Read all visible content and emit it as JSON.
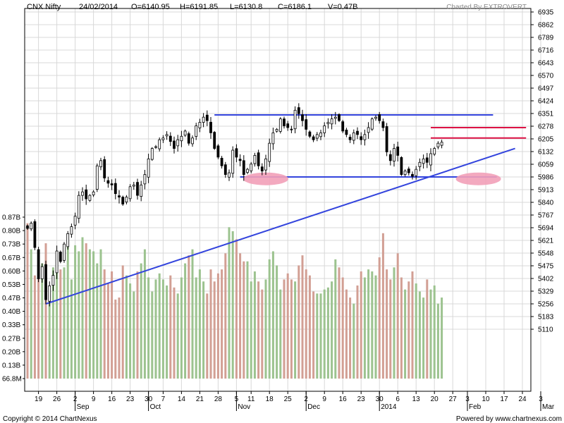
{
  "header": {
    "symbol": "CNX Nifty",
    "date": "24/02/2014",
    "open": "O=6140.95",
    "high": "H=6191.85",
    "low": "L=6130.8",
    "close": "C=6186.1",
    "volume": "V=0.47B",
    "branding": "Charted By EXTROVERT"
  },
  "footer": {
    "copyright": "Copyright © 2014 ChartNexus",
    "powered": "Powered by www.chartnexus.com"
  },
  "colors": {
    "up_volume": "#9cc38f",
    "down_volume": "#d29f94",
    "trendline": "#3344dd",
    "resistance": "#dd1144",
    "highlight": "#f2a0b8",
    "candle": "#000000",
    "grid": "#d8d8d8"
  },
  "chart_data": {
    "type": "candlestick",
    "grid": true,
    "price_axis": {
      "ylim": [
        5110,
        6935
      ],
      "ticks": [
        "6935",
        "6862",
        "6789",
        "6716",
        "6643",
        "6570",
        "6497",
        "6424",
        "6351",
        "6278",
        "6205",
        "6132",
        "6059",
        "5986",
        "5913",
        "5840",
        "5767",
        "5694",
        "5621",
        "5548",
        "5475",
        "5402",
        "5329",
        "5256",
        "5183",
        "5110"
      ]
    },
    "volume_axis": {
      "ylim": [
        0.0668,
        0.87
      ],
      "ticks": [
        "0.87B",
        "0.80B",
        "0.73B",
        "0.67B",
        "0.60B",
        "0.53B",
        "0.47B",
        "0.40B",
        "0.33B",
        "0.27B",
        "0.20B",
        "0.13B",
        "66.8M"
      ]
    },
    "x_axis": {
      "day_ticks": [
        {
          "label": "19",
          "i": 3
        },
        {
          "label": "26",
          "i": 8
        },
        {
          "label": "2",
          "i": 13
        },
        {
          "label": "9",
          "i": 18
        },
        {
          "label": "16",
          "i": 23
        },
        {
          "label": "23",
          "i": 28
        },
        {
          "label": "30",
          "i": 33
        },
        {
          "label": "7",
          "i": 37
        },
        {
          "label": "14",
          "i": 42
        },
        {
          "label": "21",
          "i": 47
        },
        {
          "label": "28",
          "i": 52
        },
        {
          "label": "5",
          "i": 57
        },
        {
          "label": "11",
          "i": 61
        },
        {
          "label": "18",
          "i": 66
        },
        {
          "label": "25",
          "i": 71
        },
        {
          "label": "2",
          "i": 76
        },
        {
          "label": "9",
          "i": 81
        },
        {
          "label": "16",
          "i": 86
        },
        {
          "label": "23",
          "i": 91
        },
        {
          "label": "30",
          "i": 96
        },
        {
          "label": "6",
          "i": 101
        },
        {
          "label": "13",
          "i": 106
        },
        {
          "label": "20",
          "i": 111
        },
        {
          "label": "27",
          "i": 116
        },
        {
          "label": "3",
          "i": 120
        },
        {
          "label": "10",
          "i": 125
        },
        {
          "label": "17",
          "i": 130
        },
        {
          "label": "24",
          "i": 135
        },
        {
          "label": "3",
          "i": 140
        }
      ],
      "month_labels": [
        {
          "label": "Sep",
          "i": 13
        },
        {
          "label": "Oct",
          "i": 33
        },
        {
          "label": "Nov",
          "i": 57
        },
        {
          "label": "Dec",
          "i": 76
        },
        {
          "label": "2014",
          "i": 96
        },
        {
          "label": "Feb",
          "i": 120
        },
        {
          "label": "Mar",
          "i": 140
        }
      ]
    },
    "closes": [
      5690,
      5720,
      5580,
      5400,
      5470,
      5280,
      5360,
      5420,
      5560,
      5500,
      5600,
      5660,
      5700,
      5760,
      5880,
      5900,
      5860,
      5880,
      5900,
      6050,
      6080,
      5980,
      5950,
      5940,
      5890,
      5870,
      5830,
      5870,
      5930,
      5940,
      5880,
      5940,
      6000,
      6090,
      6150,
      6160,
      6200,
      6210,
      6230,
      6190,
      6150,
      6200,
      6220,
      6250,
      6180,
      6210,
      6280,
      6300,
      6330,
      6310,
      6240,
      6150,
      6100,
      6050,
      6000,
      6010,
      6140,
      6100,
      6080,
      6000,
      6030,
      6060,
      6110,
      6050,
      6020,
      6090,
      6180,
      6240,
      6260,
      6320,
      6280,
      6270,
      6260,
      6370,
      6350,
      6310,
      6260,
      6220,
      6200,
      6230,
      6240,
      6280,
      6300,
      6320,
      6330,
      6310,
      6250,
      6230,
      6200,
      6240,
      6230,
      6200,
      6230,
      6270,
      6320,
      6330,
      6310,
      6270,
      6130,
      6080,
      6150,
      6110,
      6000,
      6020,
      6010,
      5990,
      6030,
      6070,
      6090,
      6070,
      6120,
      6150,
      6180,
      6186
    ],
    "volumes": [
      0.84,
      0.71,
      0.58,
      0.6,
      0.64,
      0.74,
      0.45,
      0.62,
      0.66,
      0.61,
      0.62,
      0.78,
      0.56,
      0.73,
      0.7,
      0.77,
      0.74,
      0.71,
      0.7,
      0.64,
      0.71,
      0.61,
      0.54,
      0.6,
      0.46,
      0.47,
      0.63,
      0.58,
      0.54,
      0.5,
      0.6,
      0.64,
      0.71,
      0.57,
      0.5,
      0.56,
      0.59,
      0.56,
      0.53,
      0.58,
      0.52,
      0.49,
      0.57,
      0.64,
      0.68,
      0.71,
      0.57,
      0.61,
      0.55,
      0.49,
      0.61,
      0.55,
      0.59,
      0.61,
      0.69,
      0.82,
      0.8,
      0.76,
      0.69,
      0.65,
      0.65,
      0.55,
      0.6,
      0.55,
      0.51,
      0.56,
      0.66,
      0.7,
      0.63,
      0.51,
      0.56,
      0.59,
      0.56,
      0.55,
      0.63,
      0.68,
      0.61,
      0.58,
      0.5,
      0.49,
      0.49,
      0.51,
      0.52,
      0.55,
      0.66,
      0.62,
      0.57,
      0.51,
      0.47,
      0.44,
      0.53,
      0.6,
      0.57,
      0.61,
      0.6,
      0.58,
      0.67,
      0.79,
      0.61,
      0.56,
      0.62,
      0.69,
      0.57,
      0.51,
      0.55,
      0.6,
      0.54,
      0.5,
      0.47,
      0.56,
      0.51,
      0.53,
      0.44,
      0.47
    ],
    "annotations": [
      {
        "kind": "trendline",
        "color": "#3344dd",
        "from": {
          "i": 5,
          "y": 5256
        },
        "to": {
          "i": 133,
          "y": 6150
        }
      },
      {
        "kind": "hline",
        "color": "#3344dd",
        "y": 6343,
        "from_i": 51,
        "to_i": 127
      },
      {
        "kind": "hline",
        "color": "#3344dd",
        "y": 5986,
        "from_i": 58,
        "to_i": 128
      },
      {
        "kind": "hline",
        "color": "#dd1144",
        "y": 6270,
        "from_i": 110,
        "to_i": 136
      },
      {
        "kind": "hline",
        "color": "#dd1144",
        "y": 6210,
        "from_i": 110,
        "to_i": 136
      },
      {
        "kind": "highlight",
        "color": "#f2a0b8",
        "i": 65,
        "y": 5975
      },
      {
        "kind": "highlight",
        "color": "#f2a0b8",
        "i": 123,
        "y": 5975
      }
    ]
  }
}
